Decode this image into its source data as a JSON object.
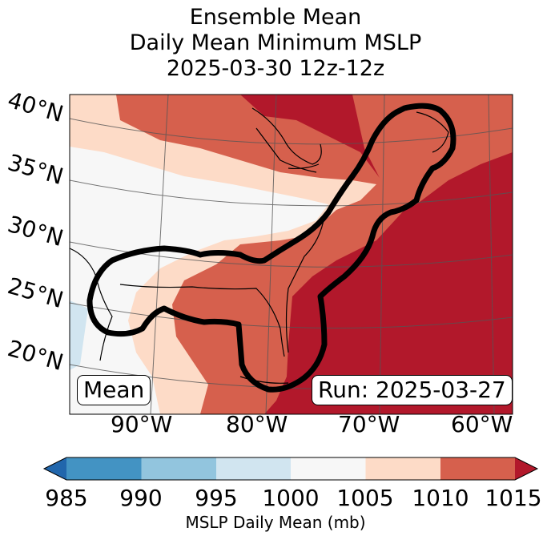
{
  "title": {
    "line1": "Ensemble Mean",
    "line2": "Daily Mean Minimum MSLP",
    "line3": "2025-03-30 12z-12z"
  },
  "latitude_labels": [
    "40°N",
    "35°N",
    "30°N",
    "25°N",
    "20°N"
  ],
  "longitude_labels": [
    "90°W",
    "80°W",
    "70°W",
    "60°W"
  ],
  "mean_box": "Mean",
  "run_box": "Run: 2025-03-27",
  "colorbar": {
    "ticks": [
      "985",
      "990",
      "995",
      "1000",
      "1005",
      "1010",
      "1015"
    ],
    "label": "MSLP Daily Mean (mb)",
    "colors": [
      "#2166ac",
      "#4393c3",
      "#92c5de",
      "#d1e5f0",
      "#f7f7f7",
      "#fddbc7",
      "#d6604d",
      "#b2182b"
    ]
  },
  "chart_data": {
    "type": "heatmap",
    "variable": "MSLP Daily Mean",
    "units": "mb",
    "levels": [
      985,
      990,
      995,
      1000,
      1005,
      1010,
      1015
    ],
    "extend": "both",
    "date": "2025-03-30 12z-12z",
    "run": "2025-03-27",
    "lon_range": [
      -97,
      -58
    ],
    "lat_range": [
      17,
      41
    ]
  }
}
